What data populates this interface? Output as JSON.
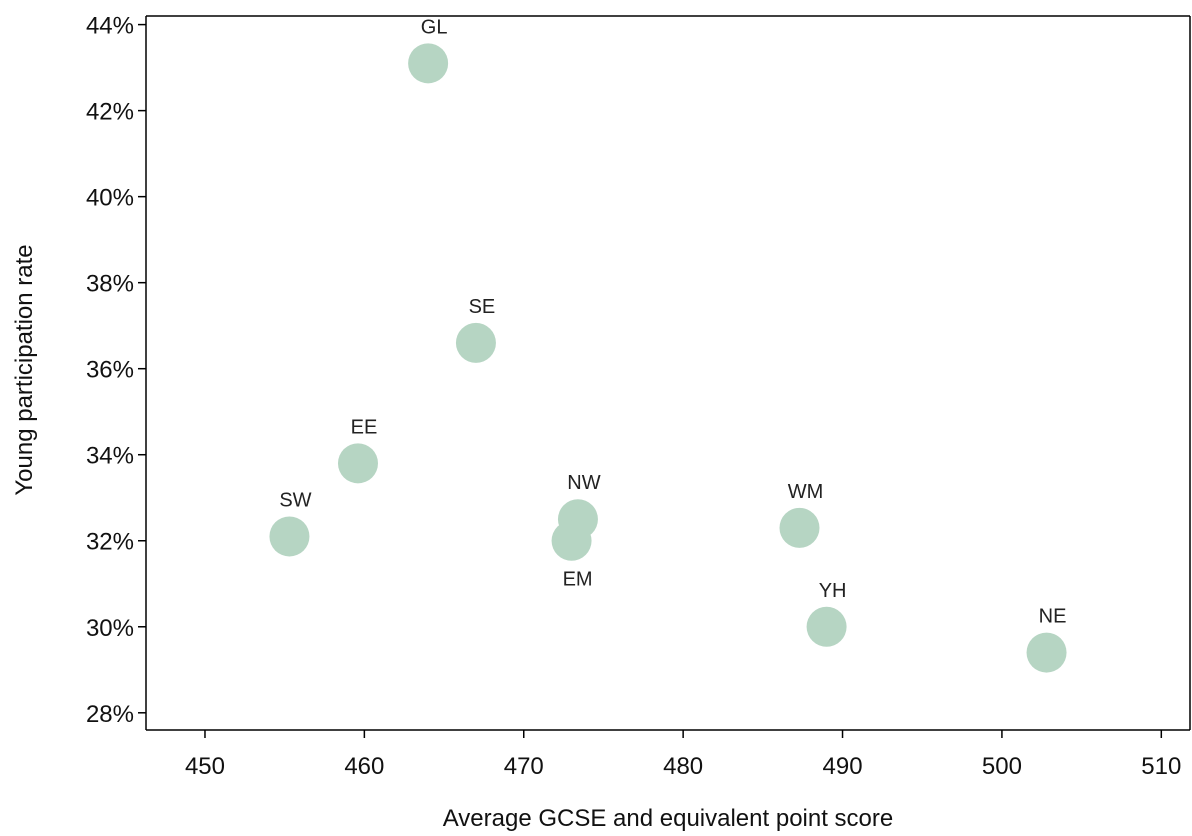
{
  "chart_data": {
    "type": "scatter",
    "xlabel": "Average GCSE and equivalent point score",
    "ylabel": "Young participation rate",
    "xlim": [
      446.3,
      511.8
    ],
    "ylim": [
      27.6,
      44.2
    ],
    "x_ticks": [
      450,
      460,
      470,
      480,
      490,
      500,
      510
    ],
    "y_ticks": [
      28,
      30,
      32,
      34,
      36,
      38,
      40,
      42,
      44
    ],
    "y_tick_suffix": "%",
    "marker_color": "#b6d5c3",
    "grid": false,
    "points": [
      {
        "label": "GL",
        "x": 464.0,
        "y": 43.1,
        "label_position": "above"
      },
      {
        "label": "SE",
        "x": 467.0,
        "y": 36.6,
        "label_position": "above"
      },
      {
        "label": "EE",
        "x": 459.6,
        "y": 33.8,
        "label_position": "above"
      },
      {
        "label": "SW",
        "x": 455.3,
        "y": 32.1,
        "label_position": "above"
      },
      {
        "label": "NW",
        "x": 473.4,
        "y": 32.5,
        "label_position": "above"
      },
      {
        "label": "EM",
        "x": 473.0,
        "y": 32.0,
        "label_position": "below"
      },
      {
        "label": "WM",
        "x": 487.3,
        "y": 32.3,
        "label_position": "above"
      },
      {
        "label": "YH",
        "x": 489.0,
        "y": 30.0,
        "label_position": "above"
      },
      {
        "label": "NE",
        "x": 502.8,
        "y": 29.4,
        "label_position": "above"
      }
    ]
  }
}
